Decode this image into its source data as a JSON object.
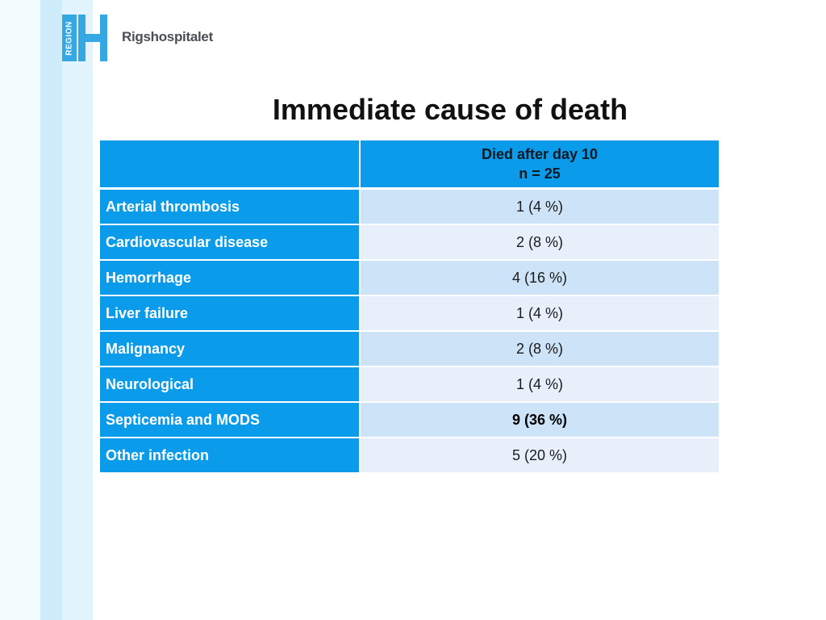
{
  "logo": {
    "region_label": "REGION",
    "brand_name": "Rigshospitalet",
    "colors": {
      "primary": "#35a7e3"
    }
  },
  "slide": {
    "title": "Immediate cause of death"
  },
  "table": {
    "header": {
      "col2_line1": "Died after day 10",
      "col2_line2": "n = 25"
    },
    "rows": [
      {
        "label": "Arterial thrombosis",
        "value": "1 (4 %)"
      },
      {
        "label": "Cardiovascular disease",
        "value": "2 (8 %)"
      },
      {
        "label": "Hemorrhage",
        "value": "4 (16 %)"
      },
      {
        "label": "Liver failure",
        "value": "1 (4 %)"
      },
      {
        "label": "Malignancy",
        "value": "2 (8 %)"
      },
      {
        "label": "Neurological",
        "value": "1 (4 %)"
      },
      {
        "label": "Septicemia and MODS",
        "value": "9 (36 %)"
      },
      {
        "label": "Other infection",
        "value": "5 (20 %)"
      }
    ]
  },
  "colors": {
    "header_blue": "#0a9bea",
    "row_light_1": "#cde3f7",
    "row_light_2": "#e7effa"
  }
}
